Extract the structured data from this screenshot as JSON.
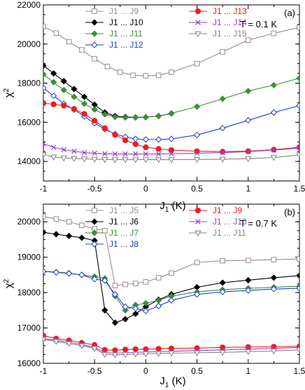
{
  "chart_data": [
    {
      "type": "line",
      "panel": "(a)",
      "annotation": "T = 0.1 K",
      "xlabel": "J1 (K)",
      "ylabel": "χ2",
      "xlim": [
        -1,
        1.5
      ],
      "ylim": [
        13000,
        22000
      ],
      "xticks": [
        "-1",
        "-0.5",
        "0",
        "0.5",
        "1",
        "1.5"
      ],
      "yticks": [
        "14000",
        "16000",
        "18000",
        "20000",
        "22000"
      ],
      "grid": false,
      "legend_position": "top",
      "series": [
        {
          "name": "J1 ... J9",
          "color": "#a08a86",
          "marker": "square-open",
          "x": [
            -1,
            -0.875,
            -0.75,
            -0.625,
            -0.5,
            -0.375,
            -0.25,
            -0.125,
            0,
            0.125,
            0.25,
            0.5,
            0.75,
            1,
            1.25,
            1.5
          ],
          "y": [
            20900,
            20560,
            20120,
            19700,
            19250,
            18850,
            18560,
            18400,
            18380,
            18400,
            18560,
            19000,
            19600,
            20200,
            20550,
            20850
          ]
        },
        {
          "name": "J1 ... J10",
          "color": "#000000",
          "marker": "diamond-filled",
          "x": [
            -1,
            -0.9,
            -0.8,
            -0.7,
            -0.6,
            -0.5,
            -0.4,
            -0.3,
            -0.2,
            -0.1,
            0,
            0.125,
            0.25
          ],
          "y": [
            18900,
            18500,
            18100,
            17700,
            17300,
            16900,
            16500,
            16320,
            16270,
            16250,
            16260,
            16320,
            16450
          ]
        },
        {
          "name": "J1 ... J11",
          "color": "#3d8c3d",
          "marker": "diamond-filled",
          "x": [
            -1,
            -0.9,
            -0.8,
            -0.7,
            -0.6,
            -0.5,
            -0.4,
            -0.3,
            -0.2,
            -0.1,
            0,
            0.125,
            0.25,
            0.5,
            0.75,
            1,
            1.25,
            1.5
          ],
          "y": [
            18450,
            18050,
            17650,
            17300,
            16950,
            16650,
            16400,
            16270,
            16240,
            16240,
            16260,
            16320,
            16460,
            16800,
            17200,
            17600,
            17900,
            18250
          ]
        },
        {
          "name": "J1 ... J12",
          "color": "#1f3fd0",
          "marker": "diamond-open",
          "x": [
            -1,
            -0.9,
            -0.8,
            -0.7,
            -0.6,
            -0.5,
            -0.4,
            -0.3,
            -0.2,
            -0.1,
            0,
            0.125,
            0.25,
            0.5,
            0.75,
            1,
            1.25,
            1.5
          ],
          "y": [
            17750,
            17350,
            16950,
            16650,
            16300,
            15950,
            15650,
            15400,
            15250,
            15150,
            15120,
            15120,
            15150,
            15350,
            15700,
            16100,
            16500,
            16850
          ]
        },
        {
          "name": "J1 ... J13",
          "color": "#ee1c1c",
          "marker": "circle-filled",
          "x": [
            -1,
            -0.9,
            -0.8,
            -0.7,
            -0.6,
            -0.5,
            -0.4,
            -0.3,
            -0.2,
            -0.1,
            0,
            0.125,
            0.25,
            0.5,
            0.75,
            1,
            1.25,
            1.5
          ],
          "y": [
            16980,
            16920,
            16850,
            16680,
            16430,
            16080,
            15700,
            15360,
            15080,
            14880,
            14720,
            14640,
            14580,
            14520,
            14500,
            14520,
            14600,
            14720
          ]
        },
        {
          "name": "J1 ... J14",
          "color": "#9a40c8",
          "marker": "x",
          "x": [
            -1,
            -0.9,
            -0.8,
            -0.7,
            -0.6,
            -0.5,
            -0.4,
            -0.3,
            -0.2,
            -0.1,
            0,
            0.125,
            0.25,
            0.5,
            0.75,
            1,
            1.25,
            1.5
          ],
          "y": [
            14900,
            14720,
            14600,
            14520,
            14450,
            14420,
            14390,
            14380,
            14380,
            14380,
            14380,
            14380,
            14390,
            14420,
            14450,
            14500,
            14580,
            14680
          ]
        },
        {
          "name": "J1 ... J15",
          "color": "#8c8080",
          "marker": "triangle-down-open",
          "x": [
            -1,
            -0.9,
            -0.8,
            -0.7,
            -0.6,
            -0.5,
            -0.4,
            -0.3,
            -0.2,
            -0.1,
            0,
            0.125,
            0.25,
            0.5,
            0.75,
            1,
            1.25,
            1.5
          ],
          "y": [
            14350,
            14220,
            14180,
            14150,
            14130,
            14110,
            14100,
            14090,
            14090,
            14090,
            14090,
            14090,
            14090,
            14100,
            14110,
            14140,
            14200,
            14330
          ]
        }
      ]
    },
    {
      "type": "line",
      "panel": "(b)",
      "annotation": "T = 0.7 K",
      "xlabel": "J1 (K)",
      "ylabel": "χ2",
      "xlim": [
        -1,
        1.5
      ],
      "ylim": [
        16000,
        20500
      ],
      "xticks": [
        "-1",
        "-0.5",
        "0",
        "0.5",
        "1",
        "1.5"
      ],
      "yticks": [
        "16000",
        "17000",
        "18000",
        "19000",
        "20000"
      ],
      "grid": false,
      "legend_position": "top",
      "series": [
        {
          "name": "J1 ... J5",
          "color": "#a08a86",
          "marker": "square-open",
          "x": [
            -1,
            -0.875,
            -0.75,
            -0.625,
            -0.5,
            -0.4,
            -0.3,
            -0.2,
            -0.1,
            0,
            0.125,
            0.25,
            0.5,
            0.75,
            1,
            1.25,
            1.5
          ],
          "y": [
            20150,
            20080,
            20000,
            19900,
            19800,
            19750,
            18200,
            18230,
            18260,
            18300,
            18420,
            18550,
            18850,
            18900,
            18910,
            18930,
            18950
          ]
        },
        {
          "name": "J1 ... J6",
          "color": "#000000",
          "marker": "diamond-filled",
          "x": [
            -1,
            -0.875,
            -0.75,
            -0.625,
            -0.5,
            -0.4,
            -0.3,
            -0.2,
            -0.1,
            0,
            0.125,
            0.25,
            0.5,
            0.75,
            1,
            1.25,
            1.5
          ],
          "y": [
            19700,
            19650,
            19600,
            19550,
            19470,
            17500,
            17150,
            17250,
            17400,
            17600,
            17800,
            17950,
            18150,
            18280,
            18350,
            18420,
            18480
          ]
        },
        {
          "name": "J1 ... J7",
          "color": "#3d8c3d",
          "marker": "diamond-filled",
          "x": [
            -1,
            -0.875,
            -0.75,
            -0.625,
            -0.5,
            -0.4,
            -0.3,
            -0.2,
            -0.1,
            0,
            0.125,
            0.25,
            0.5,
            0.75,
            1,
            1.25,
            1.5
          ],
          "y": [
            18600,
            18580,
            18550,
            18500,
            18450,
            18400,
            17900,
            17500,
            17650,
            17700,
            17780,
            17900,
            18020,
            18080,
            18120,
            18150,
            18180
          ]
        },
        {
          "name": "J1 ... J8",
          "color": "#1f3fd0",
          "marker": "diamond-open",
          "x": [
            -1,
            -0.875,
            -0.75,
            -0.625,
            -0.5,
            -0.4,
            -0.3,
            -0.2,
            -0.1,
            0,
            0.125,
            0.25,
            0.5,
            0.75,
            1,
            1.25,
            1.5
          ],
          "y": [
            18600,
            18570,
            18540,
            18500,
            18380,
            18340,
            17950,
            17600,
            17550,
            17480,
            17620,
            17780,
            17950,
            18020,
            18060,
            18100,
            18120
          ]
        },
        {
          "name": "J1 ... J9",
          "color": "#ee1c1c",
          "marker": "circle-filled",
          "x": [
            -1,
            -0.875,
            -0.75,
            -0.625,
            -0.5,
            -0.4,
            -0.3,
            -0.2,
            -0.1,
            0,
            0.125,
            0.25,
            0.5,
            0.75,
            1,
            1.25,
            1.5
          ],
          "y": [
            16780,
            16700,
            16650,
            16580,
            16520,
            16380,
            16370,
            16390,
            16400,
            16400,
            16410,
            16420,
            16430,
            16450,
            16460,
            16470,
            16480
          ]
        },
        {
          "name": "J1 ... J10",
          "color": "#9a40c8",
          "marker": "x",
          "x": [
            -1,
            -0.875,
            -0.75,
            -0.625,
            -0.5,
            -0.4,
            -0.3,
            -0.2,
            -0.1,
            0,
            0.125,
            0.25,
            0.5,
            0.75,
            1,
            1.25,
            1.5
          ],
          "y": [
            16700,
            16650,
            16600,
            16530,
            16450,
            16300,
            16290,
            16300,
            16310,
            16320,
            16330,
            16340,
            16360,
            16380,
            16400,
            16420,
            16450
          ]
        },
        {
          "name": "J1 ... J11",
          "color": "#8c8080",
          "marker": "triangle-down-open",
          "x": [
            -1,
            -0.875,
            -0.75,
            -0.625,
            -0.5,
            -0.4,
            -0.3,
            -0.2,
            -0.1,
            0,
            0.125,
            0.25,
            0.5,
            0.75,
            1,
            1.25,
            1.5
          ],
          "y": [
            16680,
            16620,
            16560,
            16500,
            16420,
            16250,
            16240,
            16250,
            16260,
            16270,
            16280,
            16290,
            16300,
            16310,
            16330,
            16350,
            16380
          ]
        }
      ]
    }
  ]
}
